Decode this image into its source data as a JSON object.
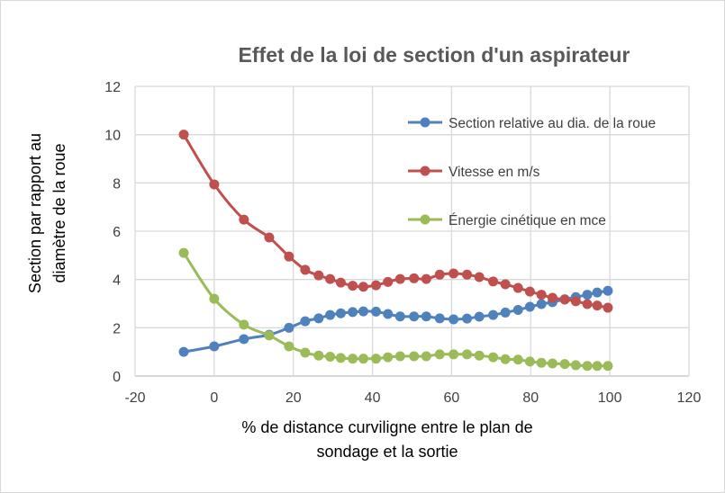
{
  "chart_data": {
    "type": "line",
    "title": "Effet de la loi de section d'un aspirateur",
    "xlabel": [
      "% de distance curviligne entre le plan de",
      "sondage et la sortie"
    ],
    "ylabel": [
      "Section par rapport au",
      "diamètre de la roue"
    ],
    "xlim": [
      -20,
      120
    ],
    "ylim": [
      0,
      12
    ],
    "xticks": [
      -20,
      0,
      20,
      40,
      60,
      80,
      100,
      120
    ],
    "yticks": [
      0,
      2,
      4,
      6,
      8,
      10,
      12
    ],
    "grid": true,
    "legend_position": "right",
    "x": [
      -7.7,
      0,
      7.5,
      13.9,
      18.9,
      23,
      26.4,
      29.3,
      32,
      35,
      37.7,
      40.9,
      43.9,
      47,
      50.5,
      53.6,
      57,
      60.5,
      63.9,
      67,
      70.5,
      73.6,
      76.8,
      79.8,
      82.7,
      85.5,
      88.6,
      91.4,
      94.3,
      96.8,
      99.5
    ],
    "series": [
      {
        "name": "Section relative au dia. de la roue",
        "color": "#4f81bd",
        "values": [
          1.0,
          1.23,
          1.53,
          1.71,
          2.0,
          2.27,
          2.39,
          2.53,
          2.6,
          2.65,
          2.68,
          2.67,
          2.57,
          2.47,
          2.47,
          2.47,
          2.39,
          2.35,
          2.38,
          2.46,
          2.53,
          2.63,
          2.74,
          2.87,
          2.98,
          3.06,
          3.18,
          3.27,
          3.37,
          3.46,
          3.53
        ]
      },
      {
        "name": "Vitesse en m/s",
        "color": "#c0504d",
        "values": [
          10.0,
          7.94,
          6.48,
          5.74,
          4.95,
          4.4,
          4.17,
          4.02,
          3.87,
          3.74,
          3.7,
          3.76,
          3.9,
          4.02,
          4.05,
          4.02,
          4.2,
          4.25,
          4.2,
          4.1,
          3.92,
          3.8,
          3.65,
          3.5,
          3.37,
          3.24,
          3.17,
          3.1,
          2.98,
          2.92,
          2.83
        ]
      },
      {
        "name": "Énergie cinétique en mce",
        "color": "#9bbb59",
        "values": [
          5.1,
          3.2,
          2.13,
          1.68,
          1.23,
          0.97,
          0.85,
          0.8,
          0.75,
          0.72,
          0.72,
          0.72,
          0.78,
          0.82,
          0.82,
          0.82,
          0.9,
          0.9,
          0.9,
          0.85,
          0.78,
          0.7,
          0.68,
          0.6,
          0.55,
          0.52,
          0.5,
          0.45,
          0.42,
          0.42,
          0.42
        ]
      }
    ]
  }
}
